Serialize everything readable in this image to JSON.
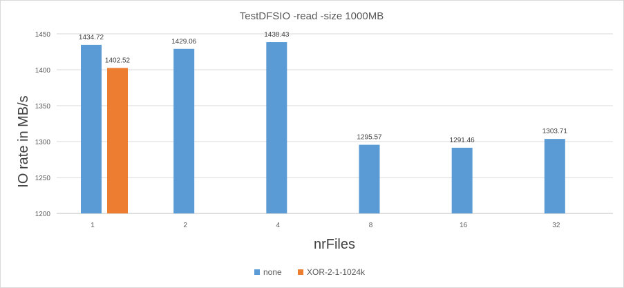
{
  "chart_data": {
    "type": "bar",
    "title": "TestDFSIO -read -size 1000MB",
    "xlabel": "nrFiles",
    "ylabel": "IO rate in MB/s",
    "categories": [
      "1",
      "2",
      "4",
      "8",
      "16",
      "32"
    ],
    "series": [
      {
        "name": "none",
        "color": "#5b9bd5",
        "values": [
          1434.72,
          1429.06,
          1438.43,
          1295.57,
          1291.46,
          1303.71
        ],
        "labels": [
          "1434.72",
          "1429.06",
          "1438.43",
          "1295.57",
          "1291.46",
          "1303.71"
        ]
      },
      {
        "name": "XOR-2-1-1024k",
        "color": "#ed7d31",
        "values": [
          1402.52,
          null,
          null,
          null,
          null,
          null
        ],
        "labels": [
          "1402.52",
          "",
          "",
          "",
          "",
          ""
        ]
      }
    ],
    "ylim": [
      1200,
      1450
    ],
    "yticks": [
      "1200",
      "1250",
      "1300",
      "1350",
      "1400",
      "1450"
    ],
    "grid": true,
    "legend_position": "bottom"
  }
}
